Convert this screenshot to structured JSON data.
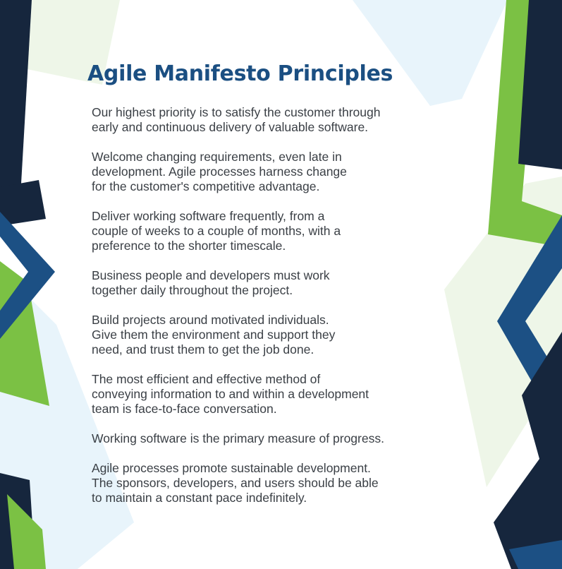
{
  "page": {
    "title": "Agile Manifesto Principles"
  },
  "principles": [
    "Our highest priority is to satisfy the customer through\nearly and continuous delivery of valuable software.",
    "Welcome changing requirements, even late in\ndevelopment. Agile processes harness change\nfor the customer's competitive advantage.",
    "Deliver working software frequently, from a\ncouple of weeks to a couple of months, with a\npreference to the shorter timescale.",
    "Business people and developers must work\ntogether daily throughout the project.",
    "Build projects around motivated individuals.\nGive them the environment and support they\nneed, and trust them to get the job done.",
    "The most efficient and effective method of\nconveying information to and within a development\nteam is face-to-face conversation.",
    "Working software is the primary measure of progress.",
    "Agile processes promote sustainable development.\nThe sponsors, developers, and users should be able\nto maintain a constant pace indefinitely."
  ],
  "colors": {
    "navy": "#16263d",
    "blue": "#1c5084",
    "green": "#7bc144",
    "pale_green": "#eef6e8",
    "pale_blue": "#e8f4fb",
    "title": "#1b4f82",
    "text": "#3a3f45"
  }
}
